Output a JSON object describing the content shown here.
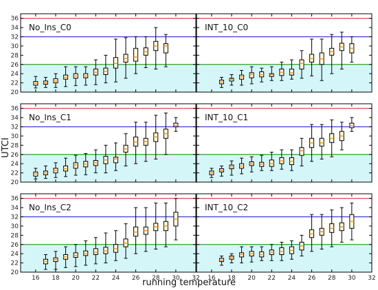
{
  "figure": {
    "ylabel": "UTCI",
    "xlabel": "running temperature"
  },
  "colors": {
    "hot_line": "#e0333a",
    "warm_line": "#3b3bd6",
    "comfort_line": "#2aa02a",
    "comfort_fill": "#d5f6f8",
    "box_fill": "#fffbe0",
    "median": "#ff8c1a"
  },
  "chart_data": [
    {
      "type": "box",
      "title": "No_Ins_C0",
      "x_ticks": [
        16,
        18,
        20,
        22,
        24,
        26,
        28,
        30,
        32
      ],
      "xlim": [
        14.5,
        32
      ],
      "y_ticks": [
        20,
        22,
        24,
        26,
        28,
        30,
        32,
        34,
        36
      ],
      "ylim": [
        20,
        37
      ],
      "reference_lines": [
        26,
        32,
        36
      ],
      "comfort_band": [
        20,
        26
      ],
      "boxes": [
        {
          "x": 16,
          "wlo": 20.9,
          "q1": 21.5,
          "med": 21.9,
          "q3": 22.3,
          "whi": 23.4
        },
        {
          "x": 17,
          "wlo": 21.0,
          "q1": 21.7,
          "med": 22.0,
          "q3": 22.4,
          "whi": 23.2
        },
        {
          "x": 18,
          "wlo": 21.0,
          "q1": 22.0,
          "med": 22.4,
          "q3": 22.9,
          "whi": 24.0
        },
        {
          "x": 19,
          "wlo": 21.2,
          "q1": 22.8,
          "med": 23.2,
          "q3": 23.7,
          "whi": 25.5
        },
        {
          "x": 20,
          "wlo": 21.4,
          "q1": 23.0,
          "med": 23.5,
          "q3": 24.0,
          "whi": 25.5
        },
        {
          "x": 21,
          "wlo": 21.5,
          "q1": 23.1,
          "med": 23.5,
          "q3": 24.0,
          "whi": 25.5
        },
        {
          "x": 22,
          "wlo": 21.6,
          "q1": 23.7,
          "med": 24.3,
          "q3": 25.0,
          "whi": 27.0
        },
        {
          "x": 23,
          "wlo": 22.0,
          "q1": 23.8,
          "med": 24.5,
          "q3": 25.2,
          "whi": 28.0
        },
        {
          "x": 24,
          "wlo": 22.2,
          "q1": 25.2,
          "med": 26.2,
          "q3": 27.5,
          "whi": 31.5
        },
        {
          "x": 25,
          "wlo": 23.0,
          "q1": 26.5,
          "med": 27.3,
          "q3": 28.2,
          "whi": 31.8
        },
        {
          "x": 26,
          "wlo": 24.0,
          "q1": 26.7,
          "med": 27.6,
          "q3": 29.5,
          "whi": 32.0
        },
        {
          "x": 27,
          "wlo": 25.3,
          "q1": 28.0,
          "med": 28.8,
          "q3": 29.6,
          "whi": 32.0
        },
        {
          "x": 28,
          "wlo": 25.0,
          "q1": 29.0,
          "med": 30.0,
          "q3": 31.0,
          "whi": 34.0
        },
        {
          "x": 29,
          "wlo": 25.5,
          "q1": 28.5,
          "med": 30.0,
          "q3": 30.5,
          "whi": 32.5
        }
      ]
    },
    {
      "type": "box",
      "title": "INT_10_C0",
      "x_ticks": [
        16,
        18,
        20,
        22,
        24,
        26,
        28,
        30,
        32
      ],
      "xlim": [
        14.5,
        32
      ],
      "y_ticks": [
        20,
        22,
        24,
        26,
        28,
        30,
        32,
        34,
        36
      ],
      "ylim": [
        20,
        37
      ],
      "reference_lines": [
        26,
        32,
        36
      ],
      "comfort_band": [
        20,
        26
      ],
      "boxes": [
        {
          "x": 17,
          "wlo": 21.0,
          "q1": 21.8,
          "med": 22.2,
          "q3": 22.6,
          "whi": 23.2
        },
        {
          "x": 18,
          "wlo": 21.5,
          "q1": 22.4,
          "med": 22.8,
          "q3": 23.0,
          "whi": 23.8
        },
        {
          "x": 19,
          "wlo": 21.5,
          "q1": 22.8,
          "med": 23.3,
          "q3": 23.7,
          "whi": 24.7
        },
        {
          "x": 20,
          "wlo": 21.8,
          "q1": 23.1,
          "med": 23.8,
          "q3": 24.2,
          "whi": 25.5
        },
        {
          "x": 21,
          "wlo": 22.2,
          "q1": 23.3,
          "med": 23.8,
          "q3": 24.4,
          "whi": 25.2
        },
        {
          "x": 22,
          "wlo": 22.5,
          "q1": 23.4,
          "med": 23.8,
          "q3": 24.0,
          "whi": 25.5
        },
        {
          "x": 23,
          "wlo": 22.5,
          "q1": 23.6,
          "med": 24.3,
          "q3": 25.0,
          "whi": 26.5
        },
        {
          "x": 24,
          "wlo": 22.8,
          "q1": 23.7,
          "med": 24.2,
          "q3": 25.0,
          "whi": 27.0
        },
        {
          "x": 25,
          "wlo": 23.0,
          "q1": 25.0,
          "med": 26.2,
          "q3": 27.0,
          "whi": 29.0
        },
        {
          "x": 26,
          "wlo": 23.5,
          "q1": 26.5,
          "med": 27.3,
          "q3": 28.2,
          "whi": 31.5
        },
        {
          "x": 27,
          "wlo": 22.5,
          "q1": 26.0,
          "med": 27.2,
          "q3": 28.5,
          "whi": 31.5
        },
        {
          "x": 28,
          "wlo": 24.0,
          "q1": 28.0,
          "med": 28.8,
          "q3": 29.5,
          "whi": 32.5
        },
        {
          "x": 29,
          "wlo": 25.0,
          "q1": 29.0,
          "med": 29.8,
          "q3": 30.6,
          "whi": 33.0
        },
        {
          "x": 30,
          "wlo": 26.5,
          "q1": 28.5,
          "med": 29.5,
          "q3": 30.5,
          "whi": 32.0
        }
      ]
    },
    {
      "type": "box",
      "title": "No_Ins_C1",
      "x_ticks": [
        16,
        18,
        20,
        22,
        24,
        26,
        28,
        30,
        32
      ],
      "xlim": [
        14.5,
        32
      ],
      "y_ticks": [
        20,
        22,
        24,
        26,
        28,
        30,
        32,
        34,
        36
      ],
      "ylim": [
        20,
        37
      ],
      "reference_lines": [
        26,
        32,
        36
      ],
      "comfort_band": [
        20,
        26
      ],
      "boxes": [
        {
          "x": 16,
          "wlo": 20.7,
          "q1": 21.3,
          "med": 21.8,
          "q3": 22.2,
          "whi": 23.0
        },
        {
          "x": 17,
          "wlo": 20.8,
          "q1": 21.6,
          "med": 22.0,
          "q3": 22.4,
          "whi": 23.5
        },
        {
          "x": 18,
          "wlo": 21.0,
          "q1": 22.0,
          "med": 22.5,
          "q3": 23.0,
          "whi": 24.2
        },
        {
          "x": 19,
          "wlo": 21.2,
          "q1": 22.4,
          "med": 22.9,
          "q3": 23.5,
          "whi": 25.2
        },
        {
          "x": 20,
          "wlo": 21.5,
          "q1": 23.0,
          "med": 23.7,
          "q3": 24.2,
          "whi": 25.8
        },
        {
          "x": 21,
          "wlo": 21.6,
          "q1": 23.3,
          "med": 23.9,
          "q3": 24.5,
          "whi": 26.2
        },
        {
          "x": 22,
          "wlo": 22.0,
          "q1": 23.6,
          "med": 24.2,
          "q3": 24.7,
          "whi": 27.0
        },
        {
          "x": 23,
          "wlo": 22.0,
          "q1": 24.0,
          "med": 24.8,
          "q3": 25.6,
          "whi": 28.0
        },
        {
          "x": 24,
          "wlo": 22.5,
          "q1": 24.2,
          "med": 25.0,
          "q3": 25.4,
          "whi": 28.5
        },
        {
          "x": 25,
          "wlo": 23.5,
          "q1": 26.5,
          "med": 27.2,
          "q3": 28.0,
          "whi": 30.5
        },
        {
          "x": 26,
          "wlo": 24.0,
          "q1": 27.8,
          "med": 28.7,
          "q3": 29.8,
          "whi": 33.0
        },
        {
          "x": 27,
          "wlo": 24.5,
          "q1": 28.0,
          "med": 28.8,
          "q3": 29.5,
          "whi": 33.0
        },
        {
          "x": 28,
          "wlo": 25.0,
          "q1": 28.8,
          "med": 29.8,
          "q3": 30.7,
          "whi": 34.5
        },
        {
          "x": 29,
          "wlo": 26.0,
          "q1": 29.5,
          "med": 30.5,
          "q3": 31.5,
          "whi": 35.0
        },
        {
          "x": 30,
          "wlo": 31.0,
          "q1": 32.0,
          "med": 32.3,
          "q3": 32.8,
          "whi": 34.0
        }
      ]
    },
    {
      "type": "box",
      "title": "INT_10_C1",
      "x_ticks": [
        16,
        18,
        20,
        22,
        24,
        26,
        28,
        30,
        32
      ],
      "xlim": [
        14.5,
        32
      ],
      "y_ticks": [
        20,
        22,
        24,
        26,
        28,
        30,
        32,
        34,
        36
      ],
      "ylim": [
        20,
        37
      ],
      "reference_lines": [
        26,
        32,
        36
      ],
      "comfort_band": [
        20,
        26
      ],
      "boxes": [
        {
          "x": 16,
          "wlo": 21.0,
          "q1": 21.6,
          "med": 22.0,
          "q3": 22.4,
          "whi": 23.0
        },
        {
          "x": 17,
          "wlo": 21.3,
          "q1": 22.2,
          "med": 22.5,
          "q3": 22.9,
          "whi": 23.5
        },
        {
          "x": 18,
          "wlo": 21.5,
          "q1": 22.9,
          "med": 23.3,
          "q3": 23.7,
          "whi": 24.6
        },
        {
          "x": 19,
          "wlo": 21.8,
          "q1": 23.0,
          "med": 23.5,
          "q3": 24.0,
          "whi": 25.2
        },
        {
          "x": 20,
          "wlo": 22.2,
          "q1": 23.6,
          "med": 24.0,
          "q3": 24.4,
          "whi": 25.5
        },
        {
          "x": 21,
          "wlo": 22.5,
          "q1": 23.4,
          "med": 23.9,
          "q3": 24.3,
          "whi": 25.8
        },
        {
          "x": 22,
          "wlo": 22.5,
          "q1": 23.4,
          "med": 24.0,
          "q3": 24.8,
          "whi": 26.5
        },
        {
          "x": 23,
          "wlo": 22.8,
          "q1": 24.0,
          "med": 24.6,
          "q3": 25.3,
          "whi": 27.0
        },
        {
          "x": 24,
          "wlo": 22.5,
          "q1": 23.8,
          "med": 24.5,
          "q3": 25.3,
          "whi": 27.0
        },
        {
          "x": 25,
          "wlo": 23.5,
          "q1": 25.8,
          "med": 26.8,
          "q3": 27.5,
          "whi": 29.5
        },
        {
          "x": 26,
          "wlo": 24.5,
          "q1": 27.5,
          "med": 28.5,
          "q3": 29.5,
          "whi": 32.5
        },
        {
          "x": 27,
          "wlo": 25.0,
          "q1": 27.8,
          "med": 28.5,
          "q3": 29.5,
          "whi": 32.5
        },
        {
          "x": 28,
          "wlo": 25.5,
          "q1": 28.6,
          "med": 29.5,
          "q3": 30.5,
          "whi": 33.5
        },
        {
          "x": 29,
          "wlo": 27.0,
          "q1": 29.0,
          "med": 30.0,
          "q3": 31.0,
          "whi": 33.0
        },
        {
          "x": 30,
          "wlo": 31.0,
          "q1": 31.8,
          "med": 32.2,
          "q3": 32.8,
          "whi": 34.0
        }
      ]
    },
    {
      "type": "box",
      "title": "No_Ins_C2",
      "x_ticks": [
        16,
        18,
        20,
        22,
        24,
        26,
        28,
        30,
        32
      ],
      "xlim": [
        14.5,
        32
      ],
      "y_ticks": [
        20,
        22,
        24,
        26,
        28,
        30,
        32,
        34,
        36
      ],
      "ylim": [
        20,
        37
      ],
      "reference_lines": [
        26,
        32,
        36
      ],
      "comfort_band": [
        20,
        26
      ],
      "boxes": [
        {
          "x": 17,
          "wlo": 20.6,
          "q1": 21.8,
          "med": 22.3,
          "q3": 22.8,
          "whi": 23.8
        },
        {
          "x": 18,
          "wlo": 20.6,
          "q1": 22.3,
          "med": 22.7,
          "q3": 23.1,
          "whi": 24.5
        },
        {
          "x": 19,
          "wlo": 21.0,
          "q1": 22.8,
          "med": 23.3,
          "q3": 23.8,
          "whi": 25.5
        },
        {
          "x": 20,
          "wlo": 21.2,
          "q1": 23.2,
          "med": 23.6,
          "q3": 24.2,
          "whi": 26.0
        },
        {
          "x": 21,
          "wlo": 21.5,
          "q1": 23.6,
          "med": 24.0,
          "q3": 24.6,
          "whi": 26.8
        },
        {
          "x": 22,
          "wlo": 21.8,
          "q1": 23.8,
          "med": 24.3,
          "q3": 25.1,
          "whi": 27.5
        },
        {
          "x": 23,
          "wlo": 22.0,
          "q1": 24.0,
          "med": 24.6,
          "q3": 25.4,
          "whi": 28.5
        },
        {
          "x": 24,
          "wlo": 22.5,
          "q1": 24.3,
          "med": 25.1,
          "q3": 26.0,
          "whi": 29.0
        },
        {
          "x": 25,
          "wlo": 23.0,
          "q1": 25.5,
          "med": 26.3,
          "q3": 27.2,
          "whi": 30.5
        },
        {
          "x": 26,
          "wlo": 24.0,
          "q1": 27.8,
          "med": 28.7,
          "q3": 29.8,
          "whi": 34.0
        },
        {
          "x": 27,
          "wlo": 24.5,
          "q1": 28.2,
          "med": 29.0,
          "q3": 29.8,
          "whi": 34.0
        },
        {
          "x": 28,
          "wlo": 25.0,
          "q1": 29.0,
          "med": 29.8,
          "q3": 30.6,
          "whi": 35.0
        },
        {
          "x": 29,
          "wlo": 25.5,
          "q1": 29.0,
          "med": 30.0,
          "q3": 31.0,
          "whi": 35.0
        },
        {
          "x": 30,
          "wlo": 27.0,
          "q1": 30.0,
          "med": 31.5,
          "q3": 33.0,
          "whi": 36.0
        }
      ]
    },
    {
      "type": "box",
      "title": "INT_10_C2",
      "x_ticks": [
        16,
        18,
        20,
        22,
        24,
        26,
        28,
        30,
        32
      ],
      "xlim": [
        14.5,
        32
      ],
      "y_ticks": [
        20,
        22,
        24,
        26,
        28,
        30,
        32,
        34,
        36
      ],
      "ylim": [
        20,
        37
      ],
      "reference_lines": [
        26,
        32,
        36
      ],
      "comfort_band": [
        20,
        26
      ],
      "boxes": [
        {
          "x": 17,
          "wlo": 21.5,
          "q1": 22.3,
          "med": 22.6,
          "q3": 23.0,
          "whi": 23.5
        },
        {
          "x": 18,
          "wlo": 22.0,
          "q1": 22.8,
          "med": 23.2,
          "q3": 23.5,
          "whi": 24.0
        },
        {
          "x": 19,
          "wlo": 22.0,
          "q1": 23.3,
          "med": 23.8,
          "q3": 24.2,
          "whi": 25.5
        },
        {
          "x": 20,
          "wlo": 22.2,
          "q1": 23.5,
          "med": 24.0,
          "q3": 24.5,
          "whi": 25.5
        },
        {
          "x": 21,
          "wlo": 22.5,
          "q1": 23.3,
          "med": 23.8,
          "q3": 24.4,
          "whi": 25.5
        },
        {
          "x": 22,
          "wlo": 22.5,
          "q1": 23.8,
          "med": 24.3,
          "q3": 24.8,
          "whi": 26.0
        },
        {
          "x": 23,
          "wlo": 22.5,
          "q1": 23.8,
          "med": 24.5,
          "q3": 25.3,
          "whi": 26.5
        },
        {
          "x": 24,
          "wlo": 22.8,
          "q1": 24.0,
          "med": 24.7,
          "q3": 25.5,
          "whi": 26.8
        },
        {
          "x": 25,
          "wlo": 23.5,
          "q1": 24.8,
          "med": 25.7,
          "q3": 26.5,
          "whi": 28.0
        },
        {
          "x": 26,
          "wlo": 24.5,
          "q1": 27.5,
          "med": 28.3,
          "q3": 29.2,
          "whi": 32.5
        },
        {
          "x": 27,
          "wlo": 25.0,
          "q1": 28.0,
          "med": 28.8,
          "q3": 29.5,
          "whi": 32.5
        },
        {
          "x": 28,
          "wlo": 25.5,
          "q1": 28.6,
          "med": 29.5,
          "q3": 30.5,
          "whi": 33.5
        },
        {
          "x": 29,
          "wlo": 26.5,
          "q1": 29.0,
          "med": 29.8,
          "q3": 30.7,
          "whi": 34.0
        },
        {
          "x": 30,
          "wlo": 27.0,
          "q1": 29.5,
          "med": 31.0,
          "q3": 32.5,
          "whi": 35.0
        }
      ]
    }
  ]
}
